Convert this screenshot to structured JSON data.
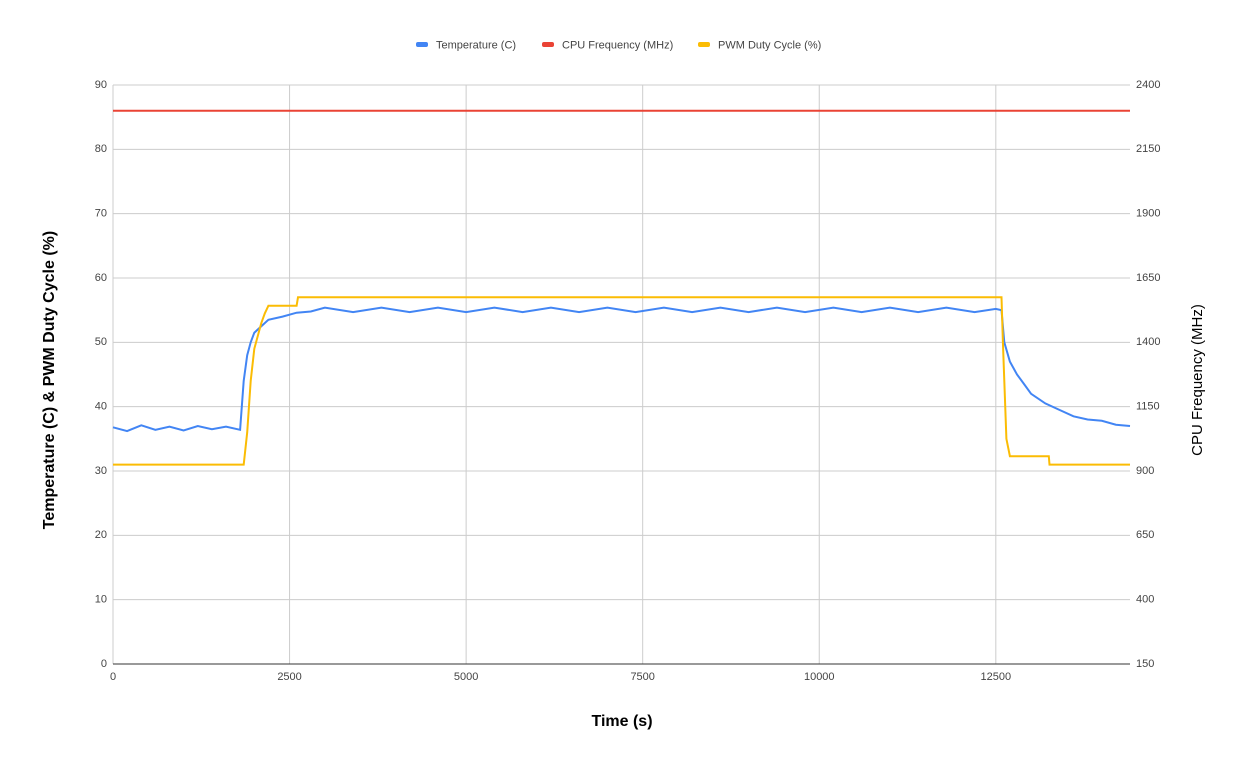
{
  "chart_data": {
    "type": "line",
    "x_label": "Time (s)",
    "y_label": "Temperature (C) & PWM Duty Cycle (%)",
    "y2_label": "CPU Frequency (MHz)",
    "xlim": [
      0,
      14400
    ],
    "xticks": [
      0,
      2500,
      5000,
      7500,
      10000,
      12500
    ],
    "ylim": [
      0,
      90
    ],
    "yticks": [
      0,
      10,
      20,
      30,
      40,
      50,
      60,
      70,
      80,
      90
    ],
    "y2lim": [
      150,
      2400
    ],
    "y2ticks": [
      150,
      400,
      650,
      900,
      1150,
      1400,
      1650,
      1900,
      2150,
      2400
    ],
    "grid": true,
    "legend": "top",
    "series": [
      {
        "name": "Temperature (C)",
        "color": "#4285f4",
        "x": [
          0,
          200,
          400,
          600,
          800,
          1000,
          1200,
          1400,
          1600,
          1800,
          1850,
          1900,
          1950,
          2000,
          2100,
          2200,
          2400,
          2600,
          2800,
          3000,
          3400,
          3800,
          4200,
          4600,
          5000,
          5400,
          5800,
          6200,
          6600,
          7000,
          7400,
          7800,
          8200,
          8600,
          9000,
          9400,
          9800,
          10200,
          10600,
          11000,
          11400,
          11800,
          12200,
          12500,
          12580,
          12620,
          12700,
          12800,
          12900,
          13000,
          13200,
          13400,
          13600,
          13800,
          14000,
          14200,
          14400
        ],
        "values": [
          36.8,
          36.2,
          37.1,
          36.4,
          36.9,
          36.3,
          37.0,
          36.5,
          36.9,
          36.4,
          44,
          48,
          50,
          51.5,
          52.5,
          53.5,
          54,
          54.6,
          54.8,
          55.4,
          54.7,
          55.4,
          54.7,
          55.4,
          54.7,
          55.4,
          54.7,
          55.4,
          54.7,
          55.4,
          54.7,
          55.4,
          54.7,
          55.4,
          54.7,
          55.4,
          54.7,
          55.4,
          54.7,
          55.4,
          54.7,
          55.4,
          54.7,
          55.2,
          55,
          50,
          47,
          45,
          43.5,
          42,
          40.5,
          39.5,
          38.5,
          38,
          37.8,
          37.2,
          37
        ]
      },
      {
        "name": "CPU Frequency (MHz)",
        "color": "#ea4335",
        "axis": "y2",
        "x": [
          0,
          14400
        ],
        "values": [
          2300,
          2300
        ]
      },
      {
        "name": "PWM Duty Cycle (%)",
        "color": "#fbbc04",
        "x": [
          0,
          1850,
          1900,
          1950,
          2000,
          2100,
          2150,
          2200,
          2600,
          2620,
          12580,
          12600,
          12650,
          12700,
          13250,
          13260,
          14400
        ],
        "values": [
          31,
          31,
          36,
          44,
          49,
          53,
          54.5,
          55.7,
          55.7,
          57,
          57,
          50,
          35,
          32.3,
          32.3,
          31,
          31
        ]
      }
    ]
  }
}
